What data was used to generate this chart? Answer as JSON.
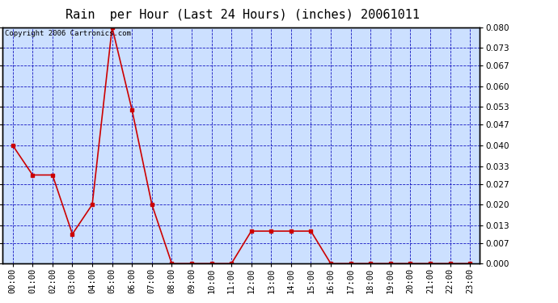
{
  "title": "Rain  per Hour (Last 24 Hours) (inches) 20061011",
  "copyright_text": "Copyright 2006 Cartronics.com",
  "hours": [
    "00:00",
    "01:00",
    "02:00",
    "03:00",
    "04:00",
    "05:00",
    "06:00",
    "07:00",
    "08:00",
    "09:00",
    "10:00",
    "11:00",
    "12:00",
    "13:00",
    "14:00",
    "15:00",
    "16:00",
    "17:00",
    "18:00",
    "19:00",
    "20:00",
    "21:00",
    "22:00",
    "23:00"
  ],
  "values": [
    0.04,
    0.03,
    0.03,
    0.01,
    0.02,
    0.08,
    0.052,
    0.02,
    0.0,
    0.0,
    0.0,
    0.0,
    0.011,
    0.011,
    0.011,
    0.011,
    0.0,
    0.0,
    0.0,
    0.0,
    0.0,
    0.0,
    0.0,
    0.0
  ],
  "ylim": [
    0.0,
    0.08
  ],
  "yticks": [
    0.0,
    0.007,
    0.013,
    0.02,
    0.027,
    0.033,
    0.04,
    0.047,
    0.053,
    0.06,
    0.067,
    0.073,
    0.08
  ],
  "line_color": "#cc0000",
  "marker": "s",
  "marker_size": 2.5,
  "bg_color": "#ffffff",
  "plot_bg_color": "#cce0ff",
  "grid_color": "#0000bb",
  "border_color": "#000000",
  "title_fontsize": 11,
  "tick_fontsize": 7.5,
  "copyright_fontsize": 6.5
}
